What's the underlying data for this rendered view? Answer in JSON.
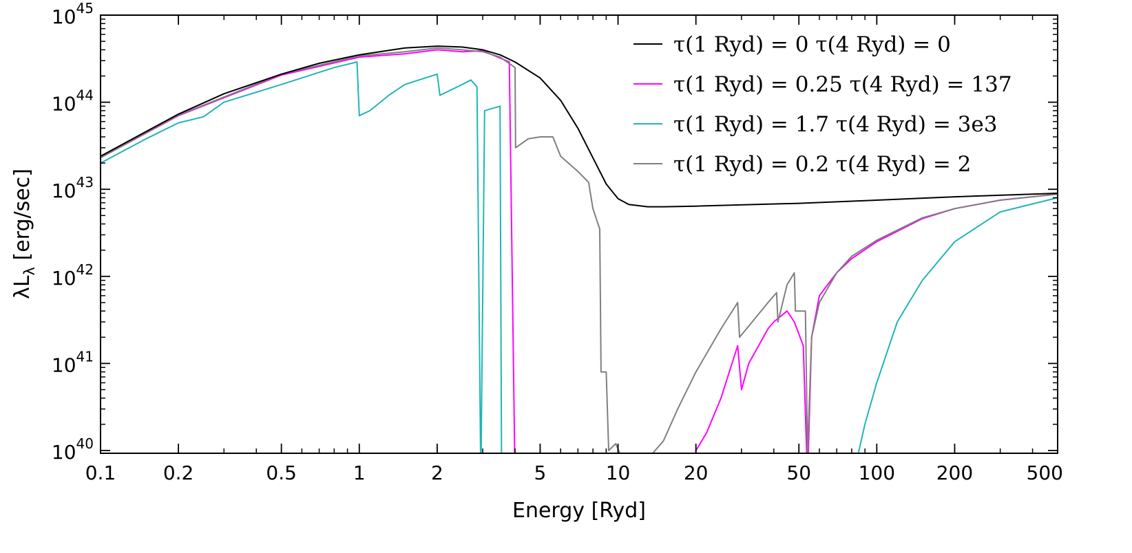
{
  "chart_data": {
    "type": "line",
    "xlabel": "Energy [Ryd]",
    "ylabel": "λL_λ [erg/sec]",
    "xscale": "log",
    "yscale": "log",
    "xlim": [
      0.1,
      500
    ],
    "ylim": [
      9.3e+39,
      1e+45
    ],
    "grid": false,
    "legend_position": "top-right",
    "x_ticks": [
      {
        "value": 0.1,
        "label": "0.1"
      },
      {
        "value": 0.2,
        "label": "0.2"
      },
      {
        "value": 0.5,
        "label": "0.5"
      },
      {
        "value": 1,
        "label": "1"
      },
      {
        "value": 2,
        "label": "2"
      },
      {
        "value": 5,
        "label": "5"
      },
      {
        "value": 10,
        "label": "10"
      },
      {
        "value": 20,
        "label": "20"
      },
      {
        "value": 50,
        "label": "50"
      },
      {
        "value": 100,
        "label": "100"
      },
      {
        "value": 200,
        "label": "200"
      },
      {
        "value": 500,
        "label": "500"
      }
    ],
    "y_ticks": [
      {
        "value": 1e+40,
        "base": "10",
        "exp": "40"
      },
      {
        "value": 1e+41,
        "base": "10",
        "exp": "41"
      },
      {
        "value": 1e+42,
        "base": "10",
        "exp": "42"
      },
      {
        "value": 1e+43,
        "base": "10",
        "exp": "43"
      },
      {
        "value": 1e+44,
        "base": "10",
        "exp": "44"
      },
      {
        "value": 1e+45,
        "base": "10",
        "exp": "45"
      }
    ],
    "series": [
      {
        "name": "τ(1 Ryd) = 0  τ(4 Ryd) = 0",
        "color": "#000000",
        "points": [
          [
            0.1,
            2.4e+43
          ],
          [
            0.15,
            4.6e+43
          ],
          [
            0.2,
            7.3e+43
          ],
          [
            0.3,
            1.25e+44
          ],
          [
            0.5,
            2.1e+44
          ],
          [
            0.7,
            2.8e+44
          ],
          [
            1,
            3.5e+44
          ],
          [
            1.5,
            4.2e+44
          ],
          [
            2,
            4.4e+44
          ],
          [
            2.5,
            4.3e+44
          ],
          [
            3,
            4e+44
          ],
          [
            3.5,
            3.5e+44
          ],
          [
            4,
            2.9e+44
          ],
          [
            5,
            1.9e+44
          ],
          [
            6,
            1.05e+44
          ],
          [
            7,
            5e+43
          ],
          [
            8,
            2.3e+43
          ],
          [
            9,
            1.15e+43
          ],
          [
            10,
            7.8e+42
          ],
          [
            11,
            6.7e+42
          ],
          [
            13,
            6.3e+42
          ],
          [
            15,
            6.3e+42
          ],
          [
            20,
            6.4e+42
          ],
          [
            50,
            6.9e+42
          ],
          [
            100,
            7.5e+42
          ],
          [
            200,
            8.2e+42
          ],
          [
            500,
            9e+42
          ]
        ]
      },
      {
        "name": "τ(1 Ryd) = 0.25 τ(4 Ryd) = 137",
        "color": "#ff00ff",
        "points": [
          [
            0.1,
            2.3e+43
          ],
          [
            0.2,
            7e+43
          ],
          [
            0.5,
            2.05e+44
          ],
          [
            1,
            3.3e+44
          ],
          [
            1.5,
            3.6e+44
          ],
          [
            2,
            4e+44
          ],
          [
            2.5,
            3.8e+44
          ],
          [
            3,
            3.9e+44
          ],
          [
            3.8,
            2.9e+44
          ],
          [
            4.0,
            1e+39
          ],
          [
            20,
            1e+39
          ],
          [
            20,
            1e+40
          ],
          [
            22,
            1.6e+40
          ],
          [
            25,
            4e+40
          ],
          [
            29,
            1.6e+41
          ],
          [
            30,
            5e+40
          ],
          [
            32,
            1e+41
          ],
          [
            38,
            2.5e+41
          ],
          [
            40,
            3e+41
          ],
          [
            45,
            4e+41
          ],
          [
            48,
            3e+41
          ],
          [
            52,
            1.6e+41
          ],
          [
            54,
            1e+39
          ],
          [
            56,
            2e+41
          ],
          [
            60,
            6e+41
          ],
          [
            70,
            1.1e+42
          ],
          [
            80,
            1.6e+42
          ],
          [
            100,
            2.5e+42
          ],
          [
            150,
            4.6e+42
          ],
          [
            200,
            6e+42
          ],
          [
            300,
            7.5e+42
          ],
          [
            500,
            8.8e+42
          ]
        ]
      },
      {
        "name": "τ(1 Ryd) = 1.7 τ(4 Ryd) = 3e3",
        "color": "#1fb5b5",
        "points": [
          [
            0.1,
            2e+43
          ],
          [
            0.15,
            3.8e+43
          ],
          [
            0.2,
            5.8e+43
          ],
          [
            0.25,
            6.8e+43
          ],
          [
            0.3,
            1e+44
          ],
          [
            0.5,
            1.6e+44
          ],
          [
            0.8,
            2.5e+44
          ],
          [
            0.98,
            2.9e+44
          ],
          [
            1.0,
            7e+43
          ],
          [
            1.1,
            8e+43
          ],
          [
            1.3,
            1.2e+44
          ],
          [
            1.5,
            1.6e+44
          ],
          [
            1.8,
            1.9e+44
          ],
          [
            2.0,
            2.1e+44
          ],
          [
            2.05,
            1.2e+44
          ],
          [
            2.5,
            1.6e+44
          ],
          [
            2.7,
            1.8e+44
          ],
          [
            2.85,
            1.5e+44
          ],
          [
            2.95,
            1e+39
          ],
          [
            3.05,
            8e+43
          ],
          [
            3.5,
            9e+43
          ],
          [
            3.55,
            1e+39
          ],
          [
            85,
            1e+39
          ],
          [
            85,
            9.5e+39
          ],
          [
            90,
            2e+40
          ],
          [
            100,
            6e+40
          ],
          [
            120,
            3e+41
          ],
          [
            150,
            9e+41
          ],
          [
            200,
            2.5e+42
          ],
          [
            300,
            5.5e+42
          ],
          [
            500,
            8e+42
          ]
        ]
      },
      {
        "name": "τ(1 Ryd) = 0.2 τ(4 Ryd) = 2",
        "color": "#7f7f7f",
        "points": [
          [
            0.1,
            2.3e+43
          ],
          [
            0.2,
            7.1e+43
          ],
          [
            0.5,
            2.1e+44
          ],
          [
            1,
            3.4e+44
          ],
          [
            1.5,
            3.8e+44
          ],
          [
            2,
            4.2e+44
          ],
          [
            2.5,
            4e+44
          ],
          [
            3,
            3.8e+44
          ],
          [
            3.5,
            3.3e+44
          ],
          [
            4.0,
            2.5e+44
          ],
          [
            4.02,
            3e+43
          ],
          [
            4.5,
            3.8e+43
          ],
          [
            5,
            4e+43
          ],
          [
            5.6,
            4e+43
          ],
          [
            6.0,
            2.4e+43
          ],
          [
            7,
            1.6e+43
          ],
          [
            7.7,
            1.2e+43
          ],
          [
            8,
            6e+42
          ],
          [
            8.5,
            3.5e+42
          ],
          [
            8.6,
            8e+40
          ],
          [
            9.0,
            8e+40
          ],
          [
            9.2,
            1e+40
          ],
          [
            9.8,
            1.2e+40
          ],
          [
            10.2,
            9e+39
          ],
          [
            13.5,
            9e+39
          ],
          [
            15,
            1.3e+40
          ],
          [
            17,
            3e+40
          ],
          [
            20,
            8e+40
          ],
          [
            25,
            2.5e+41
          ],
          [
            29,
            5e+41
          ],
          [
            29.5,
            2e+41
          ],
          [
            33,
            3e+41
          ],
          [
            38,
            5e+41
          ],
          [
            41,
            6.5e+41
          ],
          [
            41.5,
            3e+41
          ],
          [
            45,
            8e+41
          ],
          [
            48,
            1.1e+42
          ],
          [
            48.5,
            4e+41
          ],
          [
            53,
            4e+41
          ],
          [
            54,
            9e+39
          ],
          [
            56,
            2e+41
          ],
          [
            60,
            5e+41
          ],
          [
            70,
            1.1e+42
          ],
          [
            80,
            1.7e+42
          ],
          [
            100,
            2.6e+42
          ],
          [
            150,
            4.7e+42
          ],
          [
            200,
            6e+42
          ],
          [
            300,
            7.5e+42
          ],
          [
            500,
            8.8e+42
          ]
        ]
      }
    ]
  }
}
